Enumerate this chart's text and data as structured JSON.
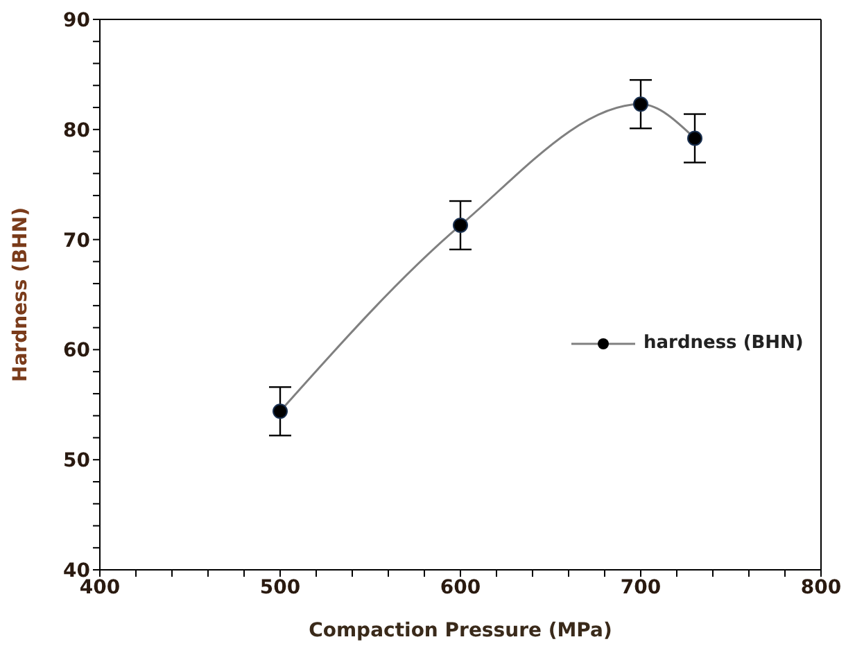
{
  "chart_data": {
    "type": "line",
    "xlabel": "Compaction Pressure (MPa)",
    "ylabel": "Hardness (BHN)",
    "x": [
      500,
      600,
      700,
      730
    ],
    "series": [
      {
        "name": "hardness (BHN)",
        "color": "#808080",
        "values": [
          54.4,
          71.3,
          82.3,
          79.2
        ],
        "errors": [
          2.2,
          2.2,
          2.2,
          2.2
        ]
      }
    ],
    "xlim": [
      400,
      800
    ],
    "xticks": [
      400,
      {
        "value": 420,
        "label": null
      },
      {
        "value": 440,
        "label": null
      },
      {
        "value": 460,
        "label": null
      },
      {
        "value": 480,
        "label": null
      },
      500,
      {
        "value": 520,
        "label": null
      },
      {
        "value": 540,
        "label": null
      },
      {
        "value": 560,
        "label": null
      },
      {
        "value": 580,
        "label": null
      },
      600,
      {
        "value": 620,
        "label": null
      },
      {
        "value": 640,
        "label": null
      },
      {
        "value": 660,
        "label": null
      },
      {
        "value": 680,
        "label": null
      },
      700,
      {
        "value": 720,
        "label": null
      },
      {
        "value": 740,
        "label": null
      },
      {
        "value": 760,
        "label": null
      },
      {
        "value": 780,
        "label": null
      },
      800
    ],
    "ylim": [
      40,
      90
    ],
    "yticks": [
      40,
      {
        "value": 42,
        "label": null
      },
      {
        "value": 44,
        "label": null
      },
      {
        "value": 46,
        "label": null
      },
      {
        "value": 48,
        "label": null
      },
      50,
      {
        "value": 52,
        "label": null
      },
      {
        "value": 54,
        "label": null
      },
      {
        "value": 56,
        "label": null
      },
      {
        "value": 58,
        "label": null
      },
      60,
      {
        "value": 62,
        "label": null
      },
      {
        "value": 64,
        "label": null
      },
      {
        "value": 66,
        "label": null
      },
      {
        "value": 68,
        "label": null
      },
      70,
      {
        "value": 72,
        "label": null
      },
      {
        "value": 74,
        "label": null
      },
      {
        "value": 76,
        "label": null
      },
      {
        "value": 78,
        "label": null
      },
      80,
      {
        "value": 82,
        "label": null
      },
      {
        "value": 84,
        "label": null
      },
      {
        "value": 86,
        "label": null
      },
      {
        "value": 88,
        "label": null
      },
      90
    ],
    "marker": "circle",
    "line_style": "solid",
    "legend": "right",
    "grid": false
  }
}
